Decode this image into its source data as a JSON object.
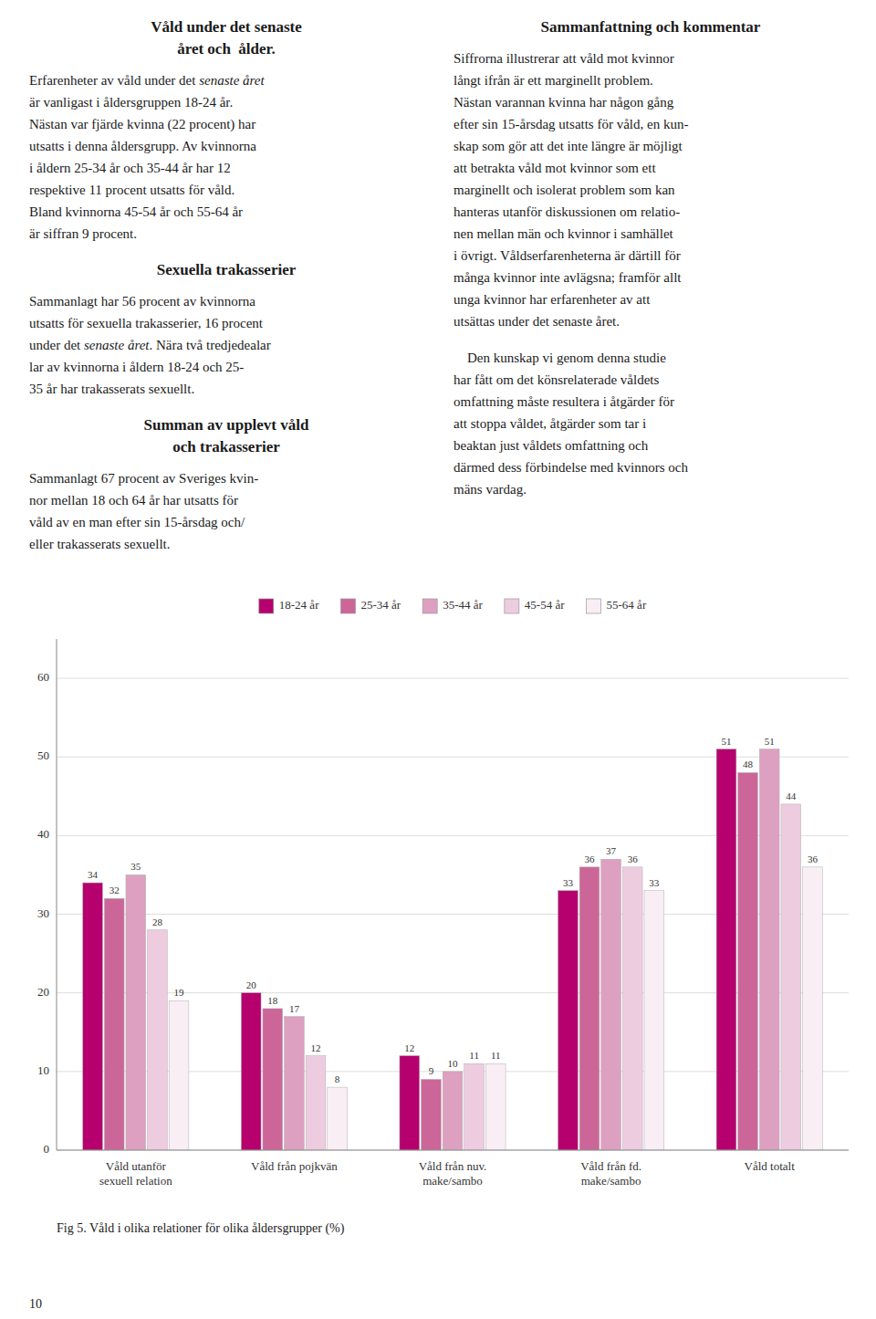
{
  "chart_data": {
    "type": "bar",
    "title": "Fig 5. Våld i olika relationer för olika åldersgrupper (%)",
    "categories": [
      "Våld utanför\nsexuell relation",
      "Våld från pojkvän",
      "Våld från nuv.\nmake/sambo",
      "Våld från fd.\nmake/sambo",
      "Våld totalt"
    ],
    "series": [
      {
        "name": "18-24 år",
        "color": "#b5006e",
        "values": [
          34,
          20,
          12,
          33,
          51
        ]
      },
      {
        "name": "25-34 år",
        "color": "#cc6699",
        "values": [
          32,
          18,
          9,
          36,
          48
        ]
      },
      {
        "name": "35-44 år",
        "color": "#dda0c0",
        "values": [
          35,
          17,
          10,
          37,
          51
        ]
      },
      {
        "name": "45-54 år",
        "color": "#eecce0",
        "values": [
          28,
          12,
          11,
          36,
          44
        ]
      },
      {
        "name": "55-64 år",
        "color": "#f8eef4",
        "values": [
          19,
          8,
          11,
          33,
          36
        ]
      }
    ],
    "ylim": [
      0,
      65
    ],
    "yticks": [
      0,
      10,
      20,
      30,
      40,
      50,
      60
    ],
    "grid": true,
    "data_labels": true,
    "legend": "top"
  },
  "page": {
    "left_column": [
      {
        "kind": "heading",
        "lines": [
          "Våld under det senaste",
          "året och  ålder."
        ]
      },
      {
        "kind": "paragraph",
        "lines": [
          [
            {
              "text": "Erfarenheter av våld under det "
            },
            {
              "text": "senaste året",
              "style": "italic"
            }
          ],
          "är vanligast i åldersgruppen 18-24 år.",
          "Nästan var fjärde kvinna (22 procent) har",
          "utsatts i denna åldersgrupp. Av kvinnorna",
          "i åldern 25-34 år och 35-44 år har 12",
          "respektive 11 procent utsatts för våld.",
          "Bland kvinnorna 45-54 år och 55-64 år",
          "är siffran 9 procent."
        ]
      },
      {
        "kind": "heading",
        "lines": [
          "Sexuella trakasserier"
        ]
      },
      {
        "kind": "paragraph",
        "lines": [
          "Sammanlagt har 56 procent av kvinnorna",
          "utsatts för sexuella trakasserier, 16 procent",
          [
            {
              "text": "under det "
            },
            {
              "text": "senaste året",
              "style": "italic"
            },
            {
              "text": ". Nära två tredjedealar"
            }
          ],
          "lar av kvinnorna i åldern 18-24 och 25-",
          "35 år har trakasserats sexuellt."
        ]
      },
      {
        "kind": "heading",
        "lines": [
          "Summan av upplevt våld",
          "och trakasserier"
        ]
      },
      {
        "kind": "paragraph",
        "lines": [
          "Sammanlagt 67 procent av Sveriges kvin-",
          "nor mellan 18 och 64 år har utsatts för",
          "våld av en man efter sin 15-årsdag och/",
          "eller trakasserats sexuellt."
        ]
      }
    ],
    "right_column": [
      {
        "kind": "heading",
        "lines": [
          "Sammanfattning och kommentar"
        ]
      },
      {
        "kind": "paragraph",
        "lines": [
          "Siffrorna illustrerar att våld mot kvinnor",
          "långt ifrån är ett marginellt problem.",
          "Nästan varannan kvinna har någon gång",
          "efter sin 15-årsdag utsatts för våld, en kun-",
          "skap som gör att det inte längre är möjligt",
          "att betrakta våld mot kvinnor som ett",
          "marginellt och isolerat problem som kan",
          "hanteras utanför diskussionen om relatio-",
          "nen mellan män och kvinnor i samhället",
          "i övrigt. Våldserfarenheterna är därtill för",
          "många kvinnor inte avlägsna; framför allt",
          "unga kvinnor har erfarenheter av att",
          "utsättas under det senaste året."
        ]
      },
      {
        "kind": "paragraph",
        "lines": [
          "    Den kunskap vi genom denna studie",
          "har fått om det könsrelaterade våldets",
          "omfattning måste resultera i åtgärder för",
          "att stoppa våldet, åtgärder som tar i",
          "beaktan just våldets omfattning och",
          "därmed dess förbindelse med kvinnors och",
          "mäns vardag."
        ]
      }
    ],
    "page_number": "10"
  }
}
